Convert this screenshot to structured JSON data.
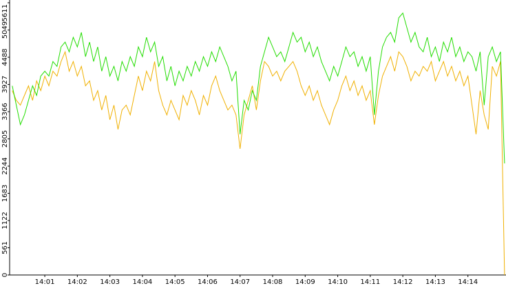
{
  "chart_data": {
    "type": "line",
    "x": [
      0,
      0.125,
      0.25,
      0.375,
      0.5,
      0.625,
      0.75,
      0.875,
      1,
      1.125,
      1.25,
      1.375,
      1.5,
      1.625,
      1.75,
      1.875,
      2,
      2.125,
      2.25,
      2.375,
      2.5,
      2.625,
      2.75,
      2.875,
      3,
      3.125,
      3.25,
      3.375,
      3.5,
      3.625,
      3.75,
      3.875,
      4,
      4.125,
      4.25,
      4.375,
      4.5,
      4.625,
      4.75,
      4.875,
      5,
      5.125,
      5.25,
      5.375,
      5.5,
      5.625,
      5.75,
      5.875,
      6,
      6.125,
      6.25,
      6.375,
      6.5,
      6.625,
      6.75,
      6.875,
      7,
      7.125,
      7.25,
      7.375,
      7.5,
      7.625,
      7.75,
      7.875,
      8,
      8.125,
      8.25,
      8.375,
      8.5,
      8.625,
      8.75,
      8.875,
      9,
      9.125,
      9.25,
      9.375,
      9.5,
      9.625,
      9.75,
      9.875,
      10,
      10.125,
      10.25,
      10.375,
      10.5,
      10.625,
      10.75,
      10.875,
      11,
      11.125,
      11.25,
      11.375,
      11.5,
      11.625,
      11.75,
      11.875,
      12,
      12.125,
      12.25,
      12.375,
      12.5,
      12.625,
      12.75,
      12.875,
      13,
      13.125,
      13.25,
      13.375,
      13.5,
      13.625,
      13.75,
      13.875,
      14,
      14.125,
      14.25,
      14.375,
      14.5,
      14.625,
      14.75,
      14.875,
      15,
      15.125
    ],
    "series": [
      {
        "color": "#f0b000",
        "values": [
          3800,
          3600,
          3500,
          3700,
          3900,
          3600,
          4000,
          3800,
          4100,
          3900,
          4200,
          4100,
          4400,
          4600,
          4200,
          4400,
          4100,
          4300,
          3900,
          4000,
          3600,
          3800,
          3400,
          3700,
          3200,
          3500,
          3000,
          3400,
          3500,
          3300,
          3700,
          4100,
          3800,
          4200,
          4000,
          4400,
          3800,
          3500,
          3300,
          3600,
          3400,
          3200,
          3700,
          3500,
          3800,
          3600,
          3300,
          3700,
          3500,
          3900,
          4100,
          3800,
          3600,
          3400,
          3500,
          3300,
          2600,
          3300,
          3600,
          3900,
          3400,
          4000,
          4400,
          4300,
          4100,
          4200,
          4000,
          4200,
          4300,
          4400,
          4200,
          3900,
          3700,
          3900,
          3600,
          3800,
          3500,
          3300,
          3100,
          3400,
          3600,
          3900,
          4100,
          3800,
          4000,
          3700,
          3900,
          3600,
          3800,
          3100,
          3700,
          4100,
          4300,
          4500,
          4200,
          4600,
          4500,
          4300,
          4000,
          4200,
          4100,
          4300,
          4200,
          4400,
          4000,
          4200,
          4400,
          4100,
          4300,
          4000,
          4200,
          3900,
          4100,
          3500,
          2900,
          3800,
          3300,
          3000,
          4300,
          4100,
          4400,
          0
        ]
      },
      {
        "color": "#22dd00",
        "values": [
          3900,
          3500,
          3100,
          3300,
          3600,
          3900,
          3700,
          4100,
          4200,
          4100,
          4400,
          4300,
          4700,
          4800,
          4600,
          4900,
          4700,
          5000,
          4500,
          4800,
          4400,
          4700,
          4200,
          4500,
          4100,
          4300,
          4000,
          4400,
          4200,
          4500,
          4300,
          4700,
          4500,
          4900,
          4600,
          4800,
          4300,
          4500,
          4000,
          4300,
          3900,
          4200,
          4000,
          4300,
          4100,
          4400,
          4200,
          4500,
          4300,
          4600,
          4400,
          4700,
          4500,
          4300,
          4000,
          4200,
          2900,
          3600,
          3400,
          3800,
          3600,
          4300,
          4600,
          4900,
          4700,
          4500,
          4600,
          4400,
          4700,
          5000,
          4800,
          4900,
          4600,
          4800,
          4500,
          4700,
          4400,
          4200,
          4000,
          4300,
          4100,
          4400,
          4700,
          4500,
          4600,
          4300,
          4500,
          4200,
          4500,
          3300,
          4200,
          4700,
          4900,
          5000,
          4800,
          5300,
          5400,
          5100,
          4800,
          5000,
          4700,
          4600,
          4900,
          4500,
          4700,
          4400,
          4800,
          4600,
          4900,
          4500,
          4700,
          4400,
          4600,
          4500,
          4200,
          4600,
          3500,
          4500,
          4700,
          4400,
          4600,
          2300
        ]
      }
    ],
    "xlim": [
      -0.08,
      15.17
    ],
    "xticks": [
      {
        "value": 1,
        "label": "14:01"
      },
      {
        "value": 2,
        "label": "14:02"
      },
      {
        "value": 3,
        "label": "14:03"
      },
      {
        "value": 4,
        "label": "14:04"
      },
      {
        "value": 5,
        "label": "14:05"
      },
      {
        "value": 6,
        "label": "14:06"
      },
      {
        "value": 7,
        "label": "14:07"
      },
      {
        "value": 8,
        "label": "14:08"
      },
      {
        "value": 9,
        "label": "14:09"
      },
      {
        "value": 10,
        "label": "14:10"
      },
      {
        "value": 11,
        "label": "14:11"
      },
      {
        "value": 12,
        "label": "14:12"
      },
      {
        "value": 13,
        "label": "14:13"
      },
      {
        "value": 14,
        "label": "14:14"
      }
    ],
    "ylim": [
      0,
      5611
    ],
    "yticks": [
      0,
      561,
      1122,
      1683,
      2244,
      2805,
      3366,
      3927,
      4488,
      5049,
      5611
    ]
  }
}
